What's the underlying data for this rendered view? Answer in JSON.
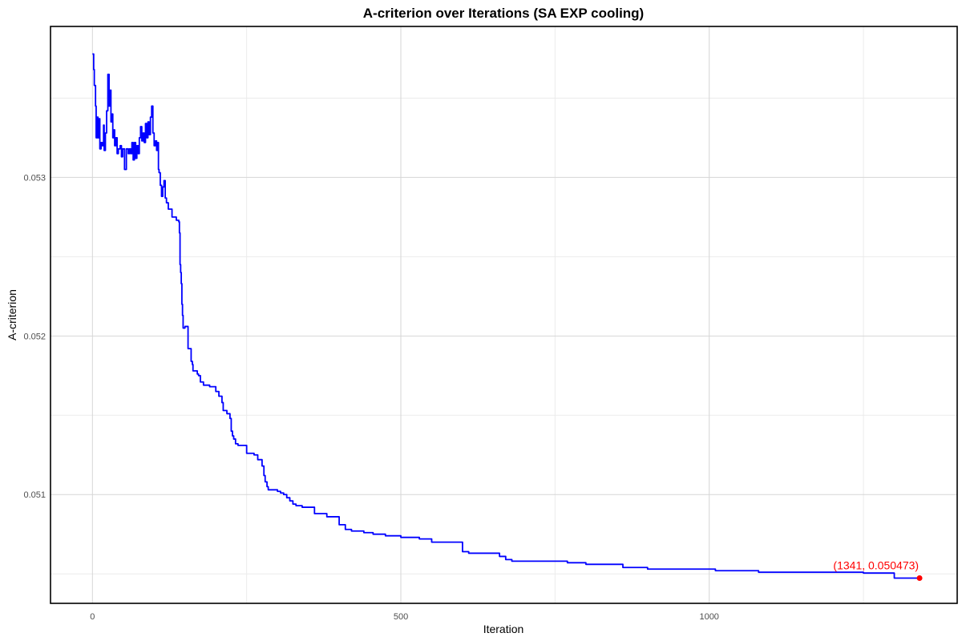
{
  "chart_data": {
    "type": "line",
    "title": "A-criterion over Iterations (SA EXP cooling)",
    "xlabel": "Iteration",
    "ylabel": "A-criterion",
    "xlim": [
      -68,
      1402
    ],
    "ylim": [
      0.050314,
      0.053952
    ],
    "x_ticks": [
      0,
      500,
      1000
    ],
    "x_tick_labels": [
      "0",
      "500",
      "1000"
    ],
    "y_ticks": [
      0.051,
      0.052,
      0.053
    ],
    "y_tick_labels": [
      "0.051",
      "0.052",
      "0.053"
    ],
    "grid": true,
    "legend": "none",
    "line_color": "#0000ff",
    "marker_color": "#ff0000",
    "series": [
      {
        "x": [
          0,
          2,
          3,
          5,
          6,
          8,
          9,
          11,
          12,
          14,
          16,
          18,
          19,
          21,
          23,
          25,
          27,
          29,
          30,
          32,
          33,
          35,
          36,
          38,
          40,
          42,
          45,
          47,
          49,
          52,
          55,
          58,
          60,
          62,
          64,
          66,
          68,
          70,
          72,
          74,
          76,
          78,
          80,
          82,
          84,
          86,
          88,
          90,
          92,
          94,
          96,
          98,
          100,
          102,
          104,
          105,
          107,
          108,
          110,
          112,
          114,
          116,
          118,
          120,
          123,
          126,
          129,
          132,
          136,
          140,
          141,
          142,
          143,
          144,
          145,
          146,
          147,
          150,
          155,
          160,
          162,
          163,
          170,
          172,
          175,
          180,
          190,
          200,
          205,
          210,
          212,
          218,
          223,
          225,
          227,
          229,
          232,
          236,
          240,
          250,
          262,
          268,
          270,
          275,
          278,
          280,
          283,
          285,
          290,
          300,
          305,
          310,
          315,
          320,
          325,
          330,
          340,
          350,
          360,
          370,
          380,
          390,
          395,
          400,
          410,
          420,
          440,
          455,
          475,
          500,
          520,
          530,
          550,
          590,
          600,
          610,
          660,
          670,
          680,
          700,
          730,
          770,
          800,
          860,
          880,
          900,
          960,
          1010,
          1050,
          1080,
          1120,
          1160,
          1200,
          1250,
          1300,
          1341
        ],
        "y": [
          0.053778,
          0.05368,
          0.05358,
          0.05345,
          0.05325,
          0.05338,
          0.05325,
          0.05337,
          0.05318,
          0.05322,
          0.0532,
          0.05333,
          0.05317,
          0.05328,
          0.05342,
          0.05365,
          0.05345,
          0.05355,
          0.05335,
          0.0534,
          0.05325,
          0.0533,
          0.0532,
          0.05325,
          0.05315,
          0.05318,
          0.0532,
          0.05313,
          0.05318,
          0.05305,
          0.05318,
          0.05315,
          0.05318,
          0.05315,
          0.05322,
          0.05311,
          0.05322,
          0.05312,
          0.0532,
          0.05315,
          0.05325,
          0.05332,
          0.05323,
          0.05328,
          0.05322,
          0.05334,
          0.05325,
          0.05335,
          0.05327,
          0.05338,
          0.05345,
          0.05328,
          0.0532,
          0.05323,
          0.05317,
          0.05322,
          0.05305,
          0.05303,
          0.05295,
          0.05288,
          0.05294,
          0.05298,
          0.05287,
          0.05284,
          0.0528,
          0.0528,
          0.05275,
          0.05275,
          0.05273,
          0.05272,
          0.05265,
          0.05245,
          0.0524,
          0.05233,
          0.0522,
          0.05213,
          0.05205,
          0.05206,
          0.05192,
          0.05184,
          0.05182,
          0.05178,
          0.05176,
          0.05175,
          0.05171,
          0.05169,
          0.05168,
          0.05165,
          0.05162,
          0.05158,
          0.05153,
          0.05151,
          0.05148,
          0.0514,
          0.05137,
          0.05135,
          0.05132,
          0.05131,
          0.05131,
          0.05126,
          0.05125,
          0.05122,
          0.05122,
          0.05118,
          0.05112,
          0.05108,
          0.05105,
          0.05103,
          0.05103,
          0.05102,
          0.05101,
          0.051,
          0.05098,
          0.05096,
          0.05094,
          0.05093,
          0.05092,
          0.05092,
          0.05088,
          0.05088,
          0.05086,
          0.05086,
          0.05086,
          0.05081,
          0.05078,
          0.05077,
          0.05076,
          0.05075,
          0.05074,
          0.05073,
          0.05073,
          0.05072,
          0.0507,
          0.0507,
          0.05064,
          0.05063,
          0.05061,
          0.05059,
          0.05058,
          0.05058,
          0.05058,
          0.05057,
          0.05056,
          0.05054,
          0.05054,
          0.05053,
          0.05053,
          0.05052,
          0.05052,
          0.05051,
          0.05051,
          0.05051,
          0.05051,
          0.050505,
          0.050473,
          0.050473
        ]
      }
    ],
    "highlight_point": {
      "x": 1341,
      "y": 0.050473,
      "label": "(1341, 0.050473)"
    }
  }
}
